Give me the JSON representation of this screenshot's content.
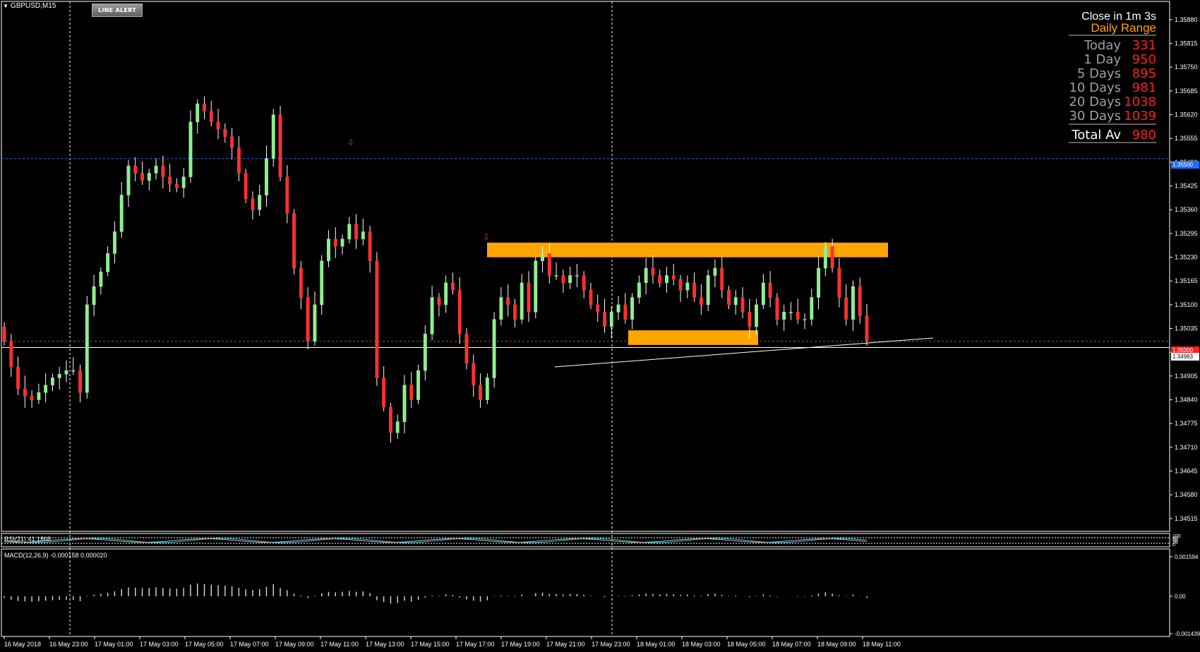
{
  "header": {
    "symbol": "GBPUSD,M15",
    "line_alert_label": "LINE ALERT"
  },
  "info_panel": {
    "close_timer": "Close in 1m 3s",
    "title": "Daily Range",
    "rows": [
      {
        "label": "Today",
        "value": "331"
      },
      {
        "label": "1 Day",
        "value": "950"
      },
      {
        "label": "5 Days",
        "value": "895"
      },
      {
        "label": "10 Days",
        "value": "981"
      },
      {
        "label": "20 Days",
        "value": "1038"
      },
      {
        "label": "30 Days",
        "value": "1039"
      }
    ],
    "total_label": "Total Av",
    "total_value": "980"
  },
  "price_axis": {
    "ticks": [
      "1.35880",
      "1.35815",
      "1.35750",
      "1.35685",
      "1.35620",
      "1.35555",
      "1.35490",
      "1.35425",
      "1.35360",
      "1.35295",
      "1.35230",
      "1.35165",
      "1.35100",
      "1.35035",
      "1.34970",
      "1.34905",
      "1.34840",
      "1.34775",
      "1.34710",
      "1.34645",
      "1.34580",
      "1.34515"
    ],
    "tag_blue": "1.35500",
    "tag_red": "1.35000",
    "tag_white": "1.34983"
  },
  "rsi": {
    "label": "RSI(21) 41.1868",
    "ticks": [
      "100",
      "80",
      "50",
      "20",
      "0"
    ]
  },
  "macd": {
    "label": "MACD(12,26,9) -0.000158 0.000020",
    "ticks": [
      "0.001594",
      "0.00",
      "-0.001439"
    ]
  },
  "time_axis": {
    "labels": [
      "16 May 2018",
      "16 May 23:00",
      "17 May 01:00",
      "17 May 03:00",
      "17 May 05:00",
      "17 May 07:00",
      "17 May 09:00",
      "17 May 11:00",
      "17 May 13:00",
      "17 May 15:00",
      "17 May 17:00",
      "17 May 19:00",
      "17 May 21:00",
      "17 May 23:00",
      "18 May 01:00",
      "18 May 03:00",
      "18 May 05:00",
      "18 May 07:00",
      "18 May 09:00",
      "18 May 11:00"
    ]
  },
  "colors": {
    "bull": "#90ee90",
    "bear": "#ff3030",
    "zone": "#ffa500",
    "grid_dotted": "#ffffff",
    "hline_blue": "#1e6eff",
    "hline_red": "#ff2020"
  },
  "chart_data": {
    "type": "candlestick",
    "symbol": "GBPUSD",
    "timeframe": "M15",
    "ylim": [
      1.3448,
      1.3593
    ],
    "closes": [
      1.35,
      1.3493,
      1.3487,
      1.3485,
      1.3484,
      1.3486,
      1.3488,
      1.349,
      1.3491,
      1.3492,
      1.3492,
      1.3486,
      1.351,
      1.3515,
      1.3519,
      1.3524,
      1.353,
      1.354,
      1.3548,
      1.3546,
      1.3544,
      1.3546,
      1.3548,
      1.3545,
      1.3543,
      1.3542,
      1.3545,
      1.356,
      1.3565,
      1.3563,
      1.356,
      1.3558,
      1.3556,
      1.3553,
      1.3546,
      1.3539,
      1.3536,
      1.354,
      1.355,
      1.3562,
      1.3545,
      1.3535,
      1.352,
      1.3512,
      1.35,
      1.351,
      1.3522,
      1.3528,
      1.3526,
      1.3528,
      1.3532,
      1.3528,
      1.353,
      1.3522,
      1.349,
      1.3482,
      1.3475,
      1.3478,
      1.3488,
      1.3484,
      1.3492,
      1.3502,
      1.3512,
      1.351,
      1.3516,
      1.3514,
      1.3502,
      1.3494,
      1.3488,
      1.3484,
      1.349,
      1.3506,
      1.3512,
      1.351,
      1.3506,
      1.3516,
      1.3508,
      1.3522,
      1.3524,
      1.3518,
      1.3518,
      1.3516,
      1.3518,
      1.3518,
      1.3514,
      1.351,
      1.3508,
      1.3504,
      1.3508,
      1.351,
      1.3506,
      1.3512,
      1.3516,
      1.352,
      1.3518,
      1.3516,
      1.3518,
      1.3517,
      1.3514,
      1.3516,
      1.3512,
      1.351,
      1.3518,
      1.352,
      1.3514,
      1.351,
      1.3512,
      1.3508,
      1.3504,
      1.351,
      1.3516,
      1.3512,
      1.3506,
      1.3508,
      1.3508,
      1.3506,
      1.3506,
      1.3512,
      1.352,
      1.3526,
      1.352,
      1.3512,
      1.3506,
      1.3515,
      1.3507,
      1.35
    ],
    "horizontal_lines": [
      {
        "price": 1.355,
        "style": "dotted",
        "color": "blue"
      },
      {
        "price": 1.35,
        "style": "dotted",
        "color": "red"
      },
      {
        "price": 1.34983,
        "style": "solid",
        "color": "white"
      }
    ],
    "zones": [
      {
        "price_high": 1.3527,
        "price_low": 1.3523
      },
      {
        "price_high": 1.3503,
        "price_low": 1.3499
      }
    ]
  }
}
